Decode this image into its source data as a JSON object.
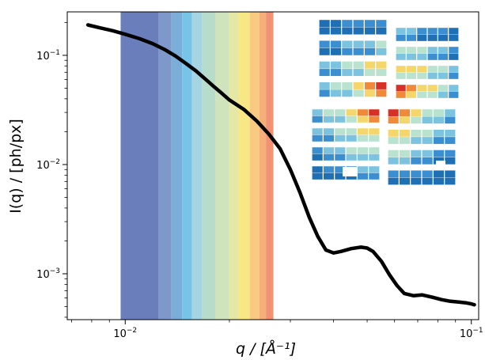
{
  "chart_data": {
    "type": "line",
    "title": "",
    "xlabel": "q / [Å⁻¹]",
    "ylabel": "I(q) / [ph/px]",
    "x_scale": "log",
    "y_scale": "log",
    "xlim": [
      0.0068,
      0.105
    ],
    "ylim": [
      0.00038,
      0.25
    ],
    "x_ticks": [
      {
        "value": 0.01,
        "base": "10",
        "exp": "−2"
      },
      {
        "value": 0.1,
        "base": "10",
        "exp": "−1"
      }
    ],
    "y_ticks": [
      {
        "value": 0.1,
        "base": "10",
        "exp": "−1"
      },
      {
        "value": 0.01,
        "base": "10",
        "exp": "−2"
      },
      {
        "value": 0.001,
        "base": "10",
        "exp": "−3"
      }
    ],
    "bands": [
      {
        "x0": 0.0097,
        "x1": 0.0125,
        "color": "#6b7ebc"
      },
      {
        "x0": 0.0125,
        "x1": 0.0136,
        "color": "#7f98cb"
      },
      {
        "x0": 0.0136,
        "x1": 0.0146,
        "color": "#7aaed9"
      },
      {
        "x0": 0.0146,
        "x1": 0.0156,
        "color": "#78c4e8"
      },
      {
        "x0": 0.0156,
        "x1": 0.0167,
        "color": "#a6d4e1"
      },
      {
        "x0": 0.0167,
        "x1": 0.0182,
        "color": "#b8dccb"
      },
      {
        "x0": 0.0182,
        "x1": 0.0199,
        "color": "#cfe3bc"
      },
      {
        "x0": 0.0199,
        "x1": 0.0213,
        "color": "#e4e7a5"
      },
      {
        "x0": 0.0213,
        "x1": 0.0229,
        "color": "#f7e885"
      },
      {
        "x0": 0.0229,
        "x1": 0.0244,
        "color": "#f8c980"
      },
      {
        "x0": 0.0244,
        "x1": 0.0255,
        "color": "#f5b07a"
      },
      {
        "x0": 0.0255,
        "x1": 0.0268,
        "color": "#f29272"
      }
    ],
    "series": [
      {
        "color": "#000000",
        "points": [
          [
            0.0078,
            0.19
          ],
          [
            0.0085,
            0.178
          ],
          [
            0.0092,
            0.168
          ],
          [
            0.01,
            0.156
          ],
          [
            0.011,
            0.142
          ],
          [
            0.012,
            0.128
          ],
          [
            0.013,
            0.113
          ],
          [
            0.014,
            0.098
          ],
          [
            0.015,
            0.084
          ],
          [
            0.016,
            0.072
          ],
          [
            0.017,
            0.061
          ],
          [
            0.018,
            0.052
          ],
          [
            0.019,
            0.045
          ],
          [
            0.02,
            0.039
          ],
          [
            0.022,
            0.032
          ],
          [
            0.024,
            0.025
          ],
          [
            0.026,
            0.019
          ],
          [
            0.028,
            0.014
          ],
          [
            0.03,
            0.009
          ],
          [
            0.032,
            0.0055
          ],
          [
            0.034,
            0.0033
          ],
          [
            0.036,
            0.0022
          ],
          [
            0.038,
            0.00165
          ],
          [
            0.04,
            0.00155
          ],
          [
            0.042,
            0.0016
          ],
          [
            0.045,
            0.0017
          ],
          [
            0.048,
            0.00175
          ],
          [
            0.05,
            0.00172
          ],
          [
            0.052,
            0.0016
          ],
          [
            0.055,
            0.0013
          ],
          [
            0.058,
            0.00098
          ],
          [
            0.061,
            0.00078
          ],
          [
            0.064,
            0.00066
          ],
          [
            0.068,
            0.00063
          ],
          [
            0.072,
            0.00064
          ],
          [
            0.077,
            0.00061
          ],
          [
            0.082,
            0.00058
          ],
          [
            0.087,
            0.00056
          ],
          [
            0.092,
            0.00055
          ],
          [
            0.097,
            0.00054
          ],
          [
            0.1,
            0.00053
          ],
          [
            0.102,
            0.00052
          ]
        ]
      }
    ],
    "inset": {
      "description_visible": false,
      "panel_colors": [
        "#1f6fb5",
        "#3b8fd0",
        "#7cc3e0",
        "#b9e2cf",
        "#f5d66a",
        "#f08a3a",
        "#d73027"
      ]
    }
  }
}
